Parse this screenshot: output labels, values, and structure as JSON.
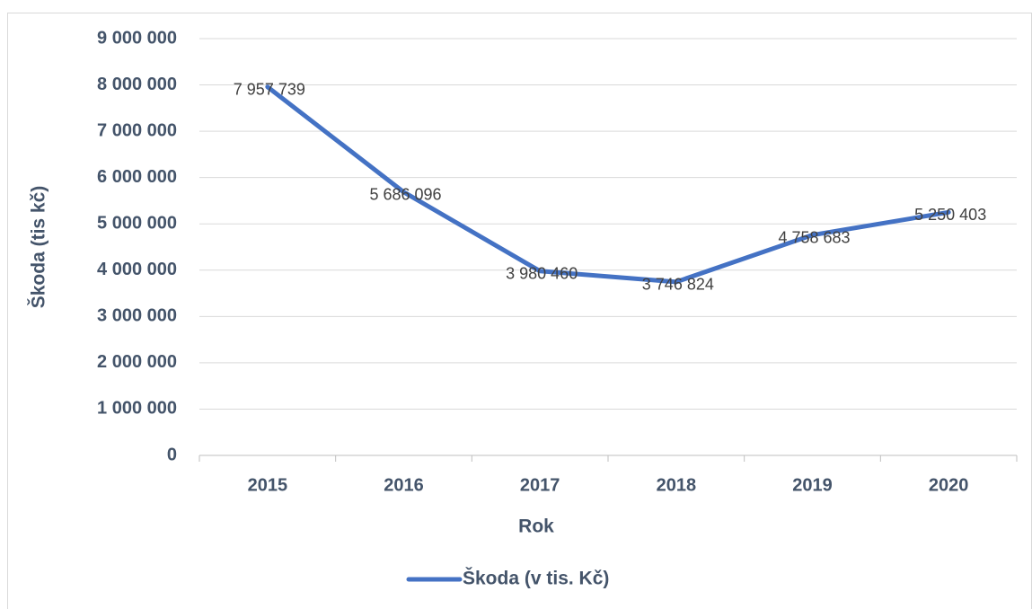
{
  "chart_data": {
    "type": "line",
    "categories": [
      "2015",
      "2016",
      "2017",
      "2018",
      "2019",
      "2020"
    ],
    "series": [
      {
        "name": "Škoda (v tis. Kč)",
        "color": "#4472c4",
        "values": [
          7957739,
          5686096,
          3980460,
          3746824,
          4758683,
          5250403
        ],
        "value_labels": [
          "7 957 739",
          "5 686 096",
          "3 980 460",
          "3 746 824",
          "4 758 683",
          "5 250 403"
        ]
      }
    ],
    "xlabel": "Rok",
    "ylabel": "Škoda (tis kč)",
    "ylim": [
      0,
      9000000
    ],
    "yticks": [
      {
        "value": 0,
        "label": "0"
      },
      {
        "value": 1000000,
        "label": "1 000 000"
      },
      {
        "value": 2000000,
        "label": "2 000 000"
      },
      {
        "value": 3000000,
        "label": "3 000 000"
      },
      {
        "value": 4000000,
        "label": "4 000 000"
      },
      {
        "value": 5000000,
        "label": "5 000 000"
      },
      {
        "value": 6000000,
        "label": "6 000 000"
      },
      {
        "value": 7000000,
        "label": "7 000 000"
      },
      {
        "value": 8000000,
        "label": "8 000 000"
      },
      {
        "value": 9000000,
        "label": "9 000 000"
      }
    ],
    "grid": true,
    "legend": "bottom"
  }
}
